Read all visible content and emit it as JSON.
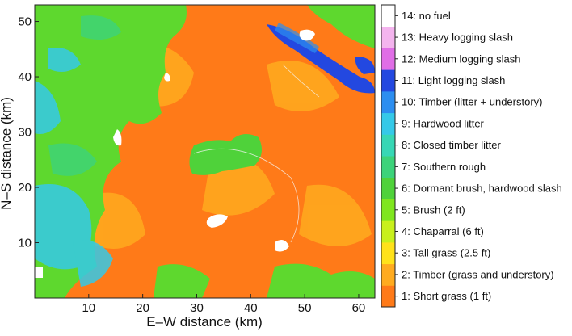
{
  "chart_data": {
    "type": "heatmap",
    "title": "",
    "xlabel": "E–W distance (km)",
    "ylabel": "N–S distance (km)",
    "xlim": [
      0,
      63
    ],
    "ylim": [
      0,
      53
    ],
    "x_ticks": [
      10,
      20,
      30,
      40,
      50,
      60
    ],
    "y_ticks": [
      10,
      20,
      30,
      40,
      50
    ],
    "colorbar": {
      "categories": [
        {
          "id": 1,
          "label": "1: Short grass (1 ft)",
          "color": "#ff7a18"
        },
        {
          "id": 2,
          "label": "2: Timber (grass and understory)",
          "color": "#ffab1f"
        },
        {
          "id": 3,
          "label": "3: Tall grass (2.5 ft)",
          "color": "#ffe21a"
        },
        {
          "id": 4,
          "label": "4: Chaparral (6 ft)",
          "color": "#c8f01c"
        },
        {
          "id": 5,
          "label": "5: Brush (2 ft)",
          "color": "#7fe61e"
        },
        {
          "id": 6,
          "label": "6: Dormant brush, hardwood slash",
          "color": "#4fd23a"
        },
        {
          "id": 7,
          "label": "7: Southern rough",
          "color": "#3cd37a"
        },
        {
          "id": 8,
          "label": "8: Closed timber litter",
          "color": "#37d7b5"
        },
        {
          "id": 9,
          "label": "9: Hardwood litter",
          "color": "#35c9e8"
        },
        {
          "id": 10,
          "label": "10: Timber (litter + understory)",
          "color": "#2c8ef0"
        },
        {
          "id": 11,
          "label": "11: Light logging slash",
          "color": "#2348e0"
        },
        {
          "id": 12,
          "label": "12: Medium logging slash",
          "color": "#e06ee6"
        },
        {
          "id": 13,
          "label": "13: Heavy logging slash",
          "color": "#f4b4ee"
        },
        {
          "id": 14,
          "label": "14: no fuel",
          "color": "#ffffff"
        }
      ]
    },
    "regions": [
      {
        "category": 1,
        "desc": "dominant orange short grass across center and east"
      },
      {
        "category": 5,
        "desc": "green brush in west and northwest"
      },
      {
        "category": 9,
        "desc": "cyan hardwood litter in southwest"
      },
      {
        "category": 11,
        "desc": "blue logging slash strip in northeast"
      },
      {
        "category": 14,
        "desc": "white no-fuel patches"
      }
    ]
  }
}
